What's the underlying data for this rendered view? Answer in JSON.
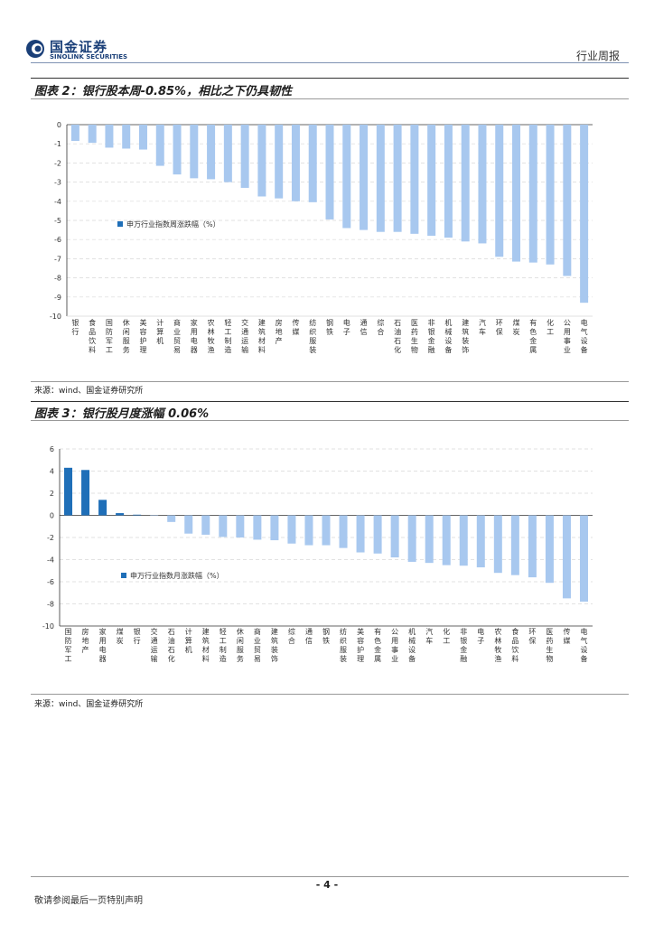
{
  "header": {
    "logo_cn": "国金证券",
    "logo_en": "SINOLINK SECURITIES",
    "report_type": "行业周报",
    "brand_color": "#1a3f78"
  },
  "figures": [
    {
      "title": "图表 2：银行股本周-0.85%，相比之下仍具韧性",
      "source": "来源：wind、国金证券研究所"
    },
    {
      "title": "图表 3：银行股月度涨幅 0.06%",
      "source": "来源：wind、国金证券研究所"
    }
  ],
  "chart_data": [
    {
      "type": "bar",
      "legend": "申万行业指数周涨跌幅（%）",
      "legend_position": "middle-left",
      "ylim": [
        -10,
        0
      ],
      "yticks": [
        0,
        -1,
        -2,
        -3,
        -4,
        -5,
        -6,
        -7,
        -8,
        -9,
        -10
      ],
      "colors": {
        "light": "#a8c8ef",
        "dark": "#1f6fb8"
      },
      "categories": [
        "银行",
        "食品饮料",
        "国防军工",
        "休闲服务",
        "美容护理",
        "计算机",
        "商业贸易",
        "家用电器",
        "农林牧渔",
        "轻工制造",
        "交通运输",
        "建筑材料",
        "房地产",
        "传媒",
        "纺织服装",
        "钢铁",
        "电子",
        "通信",
        "综合",
        "石油石化",
        "医药生物",
        "非银金融",
        "机械设备",
        "建筑装饰",
        "汽车",
        "环保",
        "煤炭",
        "有色金属",
        "化工",
        "公用事业",
        "电气设备"
      ],
      "values": [
        -0.85,
        -0.95,
        -1.2,
        -1.25,
        -1.3,
        -2.15,
        -2.6,
        -2.8,
        -2.85,
        -3.0,
        -3.3,
        -3.75,
        -3.85,
        -4.0,
        -4.05,
        -4.95,
        -5.4,
        -5.5,
        -5.6,
        -5.6,
        -5.7,
        -5.8,
        -5.9,
        -6.1,
        -6.2,
        -6.9,
        -7.15,
        -7.2,
        -7.3,
        -7.9,
        -9.3
      ]
    },
    {
      "type": "bar",
      "legend": "申万行业指数月涨跌幅（%）",
      "legend_position": "bottom-left",
      "ylim": [
        -10,
        6
      ],
      "yticks": [
        6,
        4,
        2,
        0,
        -2,
        -4,
        -6,
        -8,
        -10
      ],
      "colors": {
        "light": "#a8c8ef",
        "dark": "#1f6fb8"
      },
      "categories": [
        "国防军工",
        "房地产",
        "家用电器",
        "煤炭",
        "银行",
        "交通运输",
        "石油石化",
        "计算机",
        "建筑材料",
        "轻工制造",
        "休闲服务",
        "商业贸易",
        "建筑装饰",
        "综合",
        "通信",
        "钢铁",
        "纺织服装",
        "美容护理",
        "有色金属",
        "公用事业",
        "机械设备",
        "汽车",
        "化工",
        "非银金融",
        "电子",
        "农林牧渔",
        "食品饮料",
        "环保",
        "医药生物",
        "传媒",
        "电气设备"
      ],
      "values": [
        4.3,
        4.1,
        1.4,
        0.2,
        0.06,
        -0.05,
        -0.6,
        -1.65,
        -1.75,
        -1.95,
        -2.0,
        -2.2,
        -2.25,
        -2.55,
        -2.7,
        -2.7,
        -2.95,
        -3.35,
        -3.45,
        -3.8,
        -4.2,
        -4.3,
        -4.5,
        -4.55,
        -4.7,
        -5.2,
        -5.4,
        -5.6,
        -6.1,
        -7.5,
        -7.8
      ]
    }
  ],
  "footer": {
    "page_number": "- 4 -",
    "disclaimer": "敬请参阅最后一页特别声明"
  }
}
